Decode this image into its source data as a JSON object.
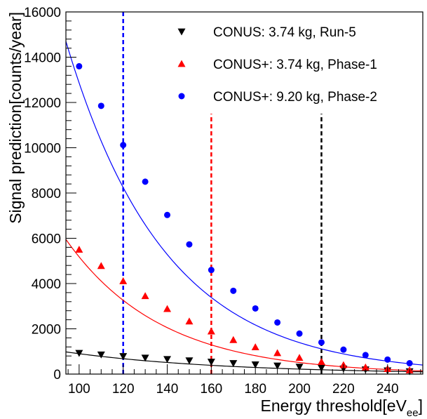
{
  "chart_data": {
    "type": "scatter",
    "xlabel": "Energy threshold[eV",
    "xlabel_sub": "ee",
    "xlabel_close": "]",
    "ylabel": "Signal prediction[counts/year]",
    "xlim": [
      94,
      256
    ],
    "ylim": [
      0,
      16000
    ],
    "x_ticks": [
      100,
      120,
      140,
      160,
      180,
      200,
      220,
      240
    ],
    "y_ticks": [
      0,
      2000,
      4000,
      6000,
      8000,
      10000,
      12000,
      14000,
      16000
    ],
    "grid": false,
    "legend_position": "top-right",
    "series": [
      {
        "name": "CONUS: 3.74 kg, Run-5",
        "marker": "triangle-down",
        "color": "#000000",
        "x": [
          100,
          110,
          120,
          130,
          140,
          150,
          160,
          170,
          180,
          190,
          200,
          210,
          220,
          230,
          240,
          250
        ],
        "values": [
          930,
          860,
          790,
          720,
          660,
          600,
          540,
          480,
          420,
          370,
          320,
          280,
          240,
          200,
          160,
          120
        ],
        "fit": [
          [
            94,
            980
          ],
          [
            256,
            100
          ]
        ]
      },
      {
        "name": "CONUS+: 3.74 kg, Phase-1",
        "marker": "triangle-up",
        "color": "#ff0000",
        "x": [
          100,
          110,
          120,
          130,
          140,
          150,
          160,
          170,
          180,
          190,
          200,
          210,
          220,
          230,
          240,
          250
        ],
        "values": [
          5500,
          4780,
          4110,
          3450,
          2880,
          2330,
          1890,
          1510,
          1190,
          930,
          720,
          540,
          400,
          300,
          230,
          170
        ],
        "fit": [
          [
            94,
            5950
          ],
          [
            256,
            140
          ]
        ]
      },
      {
        "name": "CONUS+: 9.20 kg, Phase-2",
        "marker": "circle",
        "color": "#0000ff",
        "x": [
          100,
          110,
          120,
          130,
          140,
          150,
          160,
          170,
          180,
          190,
          200,
          210,
          220,
          230,
          240,
          250
        ],
        "values": [
          13600,
          11850,
          10120,
          8500,
          7030,
          5730,
          4600,
          3680,
          2900,
          2280,
          1790,
          1400,
          1080,
          840,
          640,
          480
        ],
        "fit": [
          [
            94,
            14700
          ],
          [
            256,
            400
          ]
        ]
      }
    ],
    "vlines": [
      {
        "x": 120,
        "color": "#0000ff",
        "ymax": 16000
      },
      {
        "x": 160,
        "color": "#ff0000",
        "ymax": 11500
      },
      {
        "x": 210,
        "color": "#000000",
        "ymax": 11500
      }
    ]
  }
}
